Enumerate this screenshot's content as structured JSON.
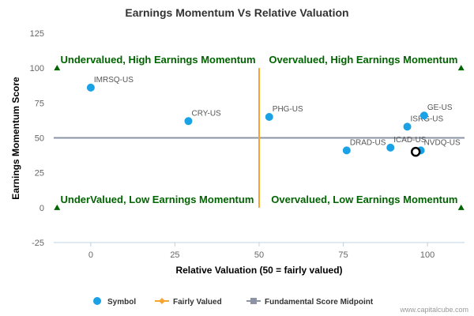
{
  "chart_data": {
    "type": "scatter",
    "title": "Earnings Momentum Vs Relative Valuation",
    "xlabel": "Relative Valuation (50 = fairly valued)",
    "ylabel": "Earnings Momentum Score",
    "xlim": [
      -11,
      111
    ],
    "ylim": [
      -25,
      125
    ],
    "x_ticks": [
      "0",
      "25",
      "50",
      "75",
      "100"
    ],
    "y_ticks": [
      "125",
      "100",
      "75",
      "50",
      "25",
      "0",
      "-25"
    ],
    "grid": false,
    "legend_position": "bottom",
    "series": [
      {
        "name": "Symbol",
        "color": "#1aa1e6",
        "points": [
          {
            "label": "IMRSQ-US",
            "x": 0,
            "y": 86
          },
          {
            "label": "CRY-US",
            "x": 29,
            "y": 62
          },
          {
            "label": "PHG-US",
            "x": 53,
            "y": 65
          },
          {
            "label": "DRAD-US",
            "x": 76,
            "y": 41
          },
          {
            "label": "ICAD-US",
            "x": 89,
            "y": 43
          },
          {
            "label": "ISRG-US",
            "x": 94,
            "y": 58
          },
          {
            "label": "GE-US",
            "x": 99,
            "y": 66
          },
          {
            "label": "NVDQ-US",
            "x": 98,
            "y": 41
          }
        ]
      },
      {
        "name": "Fairly Valued",
        "color": "#f7a531",
        "line": {
          "x": 50,
          "y_from": 0,
          "y_to": 100
        }
      },
      {
        "name": "Fundamental Score Midpoint",
        "color": "#8b93a5",
        "line": {
          "y": 50,
          "x_from": -11,
          "x_to": 111
        }
      }
    ],
    "highlighted_point": {
      "x": 96.5,
      "y": 40,
      "color": "#000000"
    },
    "quadrant_labels": [
      {
        "text": "Undervalued, High Earnings Momentum",
        "x": -9,
        "y": 100
      },
      {
        "text": "Overvalued, High Earnings Momentum",
        "x": 109,
        "y": 100
      },
      {
        "text": "UnderValued, Low Earnings Momentum",
        "x": -9,
        "y": 0
      },
      {
        "text": "Overvalued, Low Earnings Momentum",
        "x": 109,
        "y": 0
      }
    ],
    "corner_markers": {
      "color": "#006400",
      "points": [
        [
          -10,
          100
        ],
        [
          110,
          100
        ],
        [
          -10,
          0
        ],
        [
          110,
          0
        ]
      ]
    }
  },
  "credit": "www.capitalcube.com"
}
